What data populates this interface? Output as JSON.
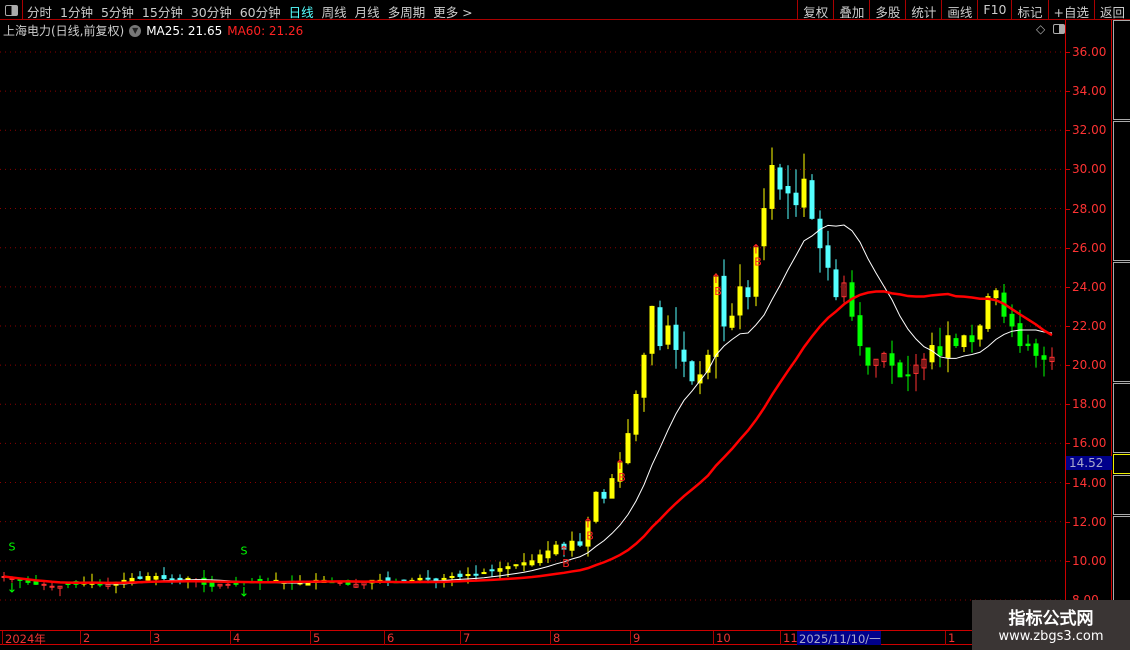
{
  "toolbar": {
    "periods": [
      "分时",
      "1分钟",
      "5分钟",
      "15分钟",
      "30分钟",
      "60分钟",
      "日线",
      "周线",
      "月线",
      "多周期",
      "更多 >"
    ],
    "active_period": "日线",
    "right_buttons": [
      "复权",
      "叠加",
      "多股",
      "统计",
      "画线",
      "F10",
      "标记",
      "+自选",
      "返回"
    ]
  },
  "info": {
    "title": "上海电力(日线,前复权)",
    "ma25": "MA25: 21.65",
    "ma60": "MA60: 21.26"
  },
  "current_price_label": "14.52",
  "watermark": {
    "title": "指标公式网",
    "url": "www.zbgs3.com"
  },
  "colors": {
    "up": "#ff3232",
    "up_strong": "#ffff00",
    "down": "#54ffff",
    "down_weak": "#00ff00",
    "ma25": "#ffffff",
    "ma60": "#ff0000",
    "grid": "#8b0000"
  },
  "chart_data": {
    "type": "candlestick",
    "yticks": [
      "36.00",
      "34.00",
      "32.00",
      "30.00",
      "28.00",
      "26.00",
      "24.00",
      "22.00",
      "20.00",
      "18.00",
      "16.00",
      "14.00",
      "12.00",
      "10.00",
      "8.00"
    ],
    "ylim": [
      8,
      36
    ],
    "xticks": [
      "2024年",
      "2",
      "3",
      "4",
      "5",
      "6",
      "7",
      "8",
      "9",
      "10",
      "11",
      "1"
    ],
    "cursor_date": "2025/11/10/一",
    "closes": [
      9.2,
      9.1,
      9.0,
      8.9,
      8.8,
      8.8,
      8.7,
      8.7,
      8.8,
      8.8,
      8.9,
      8.9,
      8.8,
      8.8,
      8.9,
      9.0,
      9.1,
      9.1,
      9.2,
      9.2,
      9.1,
      9.0,
      9.0,
      9.1,
      9.0,
      8.8,
      8.7,
      8.8,
      8.8,
      8.8,
      8.9,
      8.9,
      8.9,
      8.9,
      9.0,
      8.9,
      8.9,
      8.9,
      8.9,
      9.0,
      9.0,
      8.9,
      8.9,
      8.8,
      8.8,
      8.9,
      9.0,
      9.0,
      9.0,
      8.9,
      9.0,
      9.0,
      9.1,
      9.1,
      9.0,
      9.1,
      9.2,
      9.2,
      9.3,
      9.3,
      9.4,
      9.5,
      9.6,
      9.7,
      9.8,
      9.9,
      10.0,
      10.3,
      10.5,
      10.8,
      10.6,
      11.0,
      10.8,
      12.0,
      13.5,
      13.2,
      14.2,
      15.0,
      16.5,
      18.5,
      20.5,
      23.0,
      21.0,
      22.0,
      20.8,
      20.2,
      19.2,
      19.5,
      20.5,
      24.5,
      22.0,
      22.5,
      24.0,
      23.5,
      26.0,
      28.0,
      30.2,
      29.0,
      28.8,
      28.2,
      29.5,
      27.5,
      26.0,
      25.0,
      23.5,
      24.2,
      22.5,
      21.0,
      20.0,
      20.3,
      20.6,
      20.0,
      19.4,
      19.5,
      20.0,
      20.3,
      21.0,
      20.5,
      21.5,
      21.0,
      21.5,
      21.2,
      22.0,
      23.5,
      23.8,
      22.5,
      22.0,
      21.0,
      21.0,
      20.5,
      20.3,
      20.4
    ],
    "series": [
      {
        "name": "MA25",
        "period": 25
      },
      {
        "name": "MA60",
        "period": 60
      }
    ],
    "signals": [
      {
        "index": 1,
        "type": "S"
      },
      {
        "index": 30,
        "type": "S"
      },
      {
        "index": 70,
        "type": "B"
      },
      {
        "index": 73,
        "type": "B"
      },
      {
        "index": 77,
        "type": "B"
      },
      {
        "index": 89,
        "type": "B"
      },
      {
        "index": 94,
        "type": "B"
      }
    ]
  }
}
